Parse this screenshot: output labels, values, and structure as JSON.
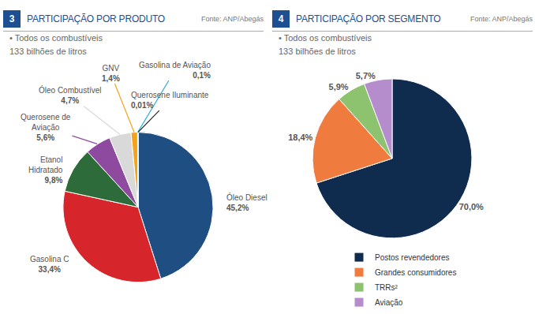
{
  "chart_data": [
    {
      "type": "pie",
      "number": "3",
      "title": "PARTICIPAÇÃO POR PRODUTO",
      "source": "Fonte: ANP/Abegás",
      "subtitle": [
        "• Todos os combustíveis",
        "133 bilhões de litros"
      ],
      "categories": [
        "Óleo Diesel",
        "Gasolina C",
        "Etanol Hidratado",
        "Querosene de Aviação",
        "Óleo Combustível",
        "GNV",
        "Gasolina de Aviação",
        "Querosene Iluminante"
      ],
      "values": [
        45.2,
        33.4,
        9.8,
        5.6,
        4.7,
        1.4,
        0.1,
        0.01
      ],
      "value_labels": [
        "45,2%",
        "33,4%",
        "9,8%",
        "5,6%",
        "4,7%",
        "1,4%",
        "0,1%",
        "0,01%"
      ],
      "colors": [
        "#1f4f82",
        "#d7262b",
        "#2e6b3a",
        "#8e4a9e",
        "#d9d9d9",
        "#f4a41c",
        "#29a8d8",
        "#222222"
      ],
      "data_labels": true
    },
    {
      "type": "pie",
      "number": "4",
      "title": "PARTICIPAÇÃO POR SEGMENTO",
      "source": "Fonte: ANP/Abegás",
      "subtitle": [
        "• Todos os combustíveis",
        "133 bilhões de litros"
      ],
      "categories": [
        "Postos revendedores",
        "Grandes consumidores",
        "TRRs²",
        "Aviação"
      ],
      "values": [
        70.0,
        18.4,
        5.9,
        5.7
      ],
      "value_labels": [
        "70,0%",
        "18,4%",
        "5,9%",
        "5,7%"
      ],
      "colors": [
        "#0f2c4f",
        "#f07b3f",
        "#8dc26f",
        "#b58ccc"
      ],
      "data_labels": true,
      "legend": "bottom"
    }
  ]
}
